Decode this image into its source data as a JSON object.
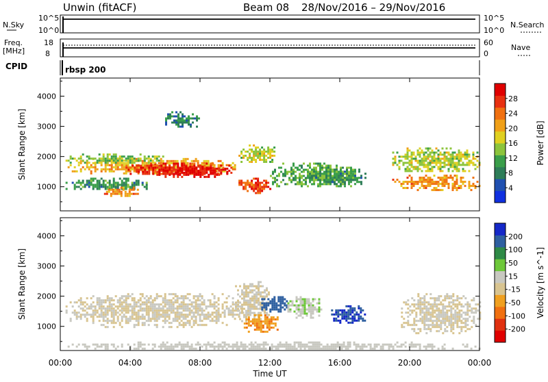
{
  "header": {
    "station": "Unwin (fitACF)",
    "beam": "Beam 08",
    "date_range": "28/Nov/2016 – 29/Nov/2016"
  },
  "strips": {
    "nsky_label": "N.Sky",
    "nsky_ticks": [
      "10^5",
      "10^0"
    ],
    "nsearch_label": "N.Search",
    "nsearch_ticks": [
      "10^5",
      "10^0"
    ],
    "freq_label_1": "Freq.",
    "freq_label_2": "[MHz]",
    "freq_ticks": [
      "18",
      "8"
    ],
    "nave_label": "Nave",
    "nave_ticks": [
      "60",
      "0"
    ],
    "cpid_label": "CPID",
    "cpid_value": "rbsp 200"
  },
  "time_axis": {
    "label": "Time UT",
    "ticks": [
      "00:00",
      "04:00",
      "08:00",
      "12:00",
      "16:00",
      "20:00",
      "00:00"
    ]
  },
  "colors": {
    "power_scale": [
      "#1030e0",
      "#2050b0",
      "#2e7d58",
      "#3a9e4a",
      "#8cc43c",
      "#e0d020",
      "#f0a018",
      "#f07010",
      "#e83010",
      "#e00000"
    ],
    "velocity_scale": [
      "#1528c8",
      "#2e5fa0",
      "#2e8a46",
      "#6ec83a",
      "#c8c8c0",
      "#d8c490",
      "#f0a020",
      "#f07010",
      "#e03010",
      "#e00000"
    ]
  },
  "chart_data": [
    {
      "type": "heatmap",
      "panel": "power",
      "ylabel": "Slant Range [km]",
      "yticks": [
        1000,
        2000,
        3000,
        4000
      ],
      "ylim": [
        200,
        4600
      ],
      "x_range_hours": [
        0,
        24
      ],
      "colorbar_label": "Power [dB]",
      "colorbar_ticks": [
        4,
        8,
        12,
        16,
        20,
        24,
        28
      ],
      "colorbar_range": [
        0,
        32
      ],
      "regions": [
        {
          "t": [
            0.3,
            10.0
          ],
          "r": [
            1450,
            1950
          ],
          "value": 20
        },
        {
          "t": [
            3.5,
            9.8
          ],
          "r": [
            1400,
            1800
          ],
          "value": 28
        },
        {
          "t": [
            5.5,
            9.8
          ],
          "r": [
            1350,
            1700
          ],
          "value": 30
        },
        {
          "t": [
            0.3,
            6.0
          ],
          "r": [
            1800,
            2100
          ],
          "value": 14
        },
        {
          "t": [
            0.3,
            5.0
          ],
          "r": [
            900,
            1300
          ],
          "value": 10
        },
        {
          "t": [
            2.5,
            4.5
          ],
          "r": [
            700,
            1000
          ],
          "value": 22
        },
        {
          "t": [
            10.2,
            12.3
          ],
          "r": [
            1800,
            2400
          ],
          "value": 16
        },
        {
          "t": [
            10.2,
            12.0
          ],
          "r": [
            800,
            1300
          ],
          "value": 26
        },
        {
          "t": [
            12.0,
            17.0
          ],
          "r": [
            1000,
            1800
          ],
          "value": 12
        },
        {
          "t": [
            14.0,
            17.5
          ],
          "r": [
            1100,
            1600
          ],
          "value": 10
        },
        {
          "t": [
            19.0,
            24.0
          ],
          "r": [
            900,
            1400
          ],
          "value": 22
        },
        {
          "t": [
            19.0,
            24.0
          ],
          "r": [
            1500,
            2300
          ],
          "value": 16
        },
        {
          "t": [
            6.0,
            8.0
          ],
          "r": [
            3000,
            3500
          ],
          "value": 8
        }
      ]
    },
    {
      "type": "heatmap",
      "panel": "velocity",
      "ylabel": "Slant Range [km]",
      "yticks": [
        1000,
        2000,
        3000,
        4000
      ],
      "ylim": [
        200,
        4600
      ],
      "x_range_hours": [
        0,
        24
      ],
      "colorbar_label": "Velocity [m s^-1]",
      "colorbar_ticks": [
        200,
        100,
        50,
        15,
        -15,
        -50,
        -100,
        -200
      ],
      "colorbar_range": [
        -250,
        250
      ],
      "regions": [
        {
          "t": [
            0.3,
            10.5
          ],
          "r": [
            1000,
            2100
          ],
          "value": 0
        },
        {
          "t": [
            10.0,
            12.0
          ],
          "r": [
            1200,
            2500
          ],
          "value": 0
        },
        {
          "t": [
            10.5,
            12.5
          ],
          "r": [
            800,
            1400
          ],
          "value": -90
        },
        {
          "t": [
            11.5,
            13.0
          ],
          "r": [
            1500,
            2000
          ],
          "value": 180
        },
        {
          "t": [
            13.0,
            15.0
          ],
          "r": [
            1300,
            2000
          ],
          "value": 40
        },
        {
          "t": [
            15.5,
            17.5
          ],
          "r": [
            1150,
            1700
          ],
          "value": 200
        },
        {
          "t": [
            19.5,
            24.0
          ],
          "r": [
            800,
            2100
          ],
          "value": 0
        },
        {
          "t": [
            0.3,
            24.0
          ],
          "r": [
            250,
            500
          ],
          "value": 20
        }
      ]
    }
  ]
}
